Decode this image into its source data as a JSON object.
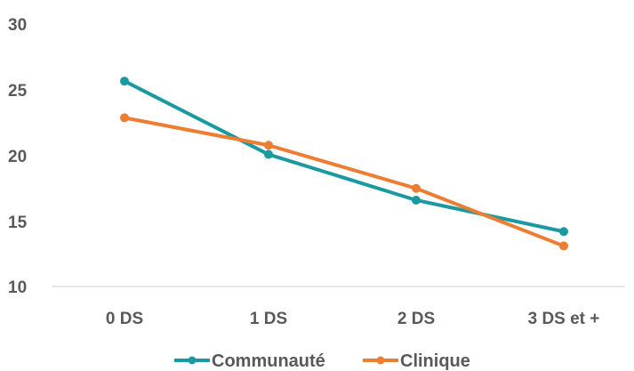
{
  "chart_data": {
    "type": "line",
    "title": "",
    "xlabel": "",
    "ylabel": "",
    "categories": [
      "0 DS",
      "1 DS",
      "2 DS",
      "3 DS et +"
    ],
    "ylim": [
      10,
      30
    ],
    "yticks": [
      "10",
      "15",
      "20",
      "25",
      "30"
    ],
    "grid": false,
    "legend_position": "bottom",
    "series": [
      {
        "name": "Communauté",
        "color": "#1a9aa0",
        "values": [
          25.7,
          20.1,
          16.6,
          14.2
        ]
      },
      {
        "name": "Clinique",
        "color": "#ed7d31",
        "values": [
          22.9,
          20.8,
          17.5,
          13.1
        ]
      }
    ]
  }
}
